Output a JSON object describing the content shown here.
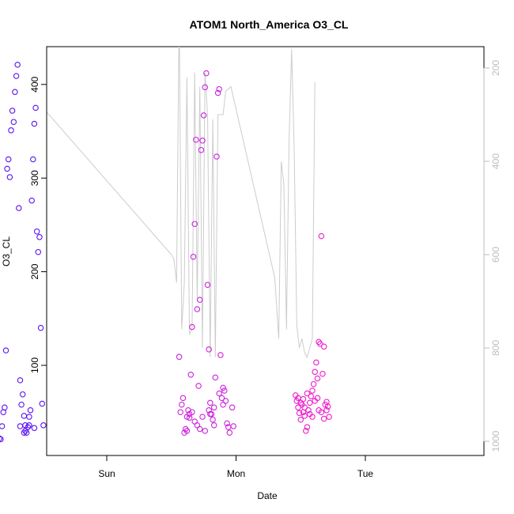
{
  "chart_data": {
    "type": "scatter",
    "title": "ATOM1 North_America O3_CL",
    "xlabel": "Date",
    "ylabel": "O3_CL",
    "x_ticks": [
      "Sun",
      "Mon",
      "Tue"
    ],
    "y_ticks": [
      100,
      200,
      300,
      400
    ],
    "y_right_ticks": [
      200,
      400,
      600,
      800,
      1000
    ],
    "y_right_reversed": true,
    "grid": false,
    "legend": "none",
    "colors": {
      "line": "#cccccc",
      "axis": "#000000",
      "right_axis": "#bdbdbd"
    },
    "points": [
      [
        0.17,
        22,
        "#5a12f2"
      ],
      [
        0.18,
        21,
        "#5a12f2"
      ],
      [
        0.19,
        35,
        "#5a12f2"
      ],
      [
        0.2,
        50,
        "#5a12f2"
      ],
      [
        0.21,
        55,
        "#5a12f2"
      ],
      [
        0.22,
        116,
        "#5a12f2"
      ],
      [
        0.23,
        310,
        "#5a12f2"
      ],
      [
        0.24,
        320,
        "#5a12f2"
      ],
      [
        0.25,
        301,
        "#5a12f2"
      ],
      [
        0.26,
        351,
        "#5a12f2"
      ],
      [
        0.27,
        372,
        "#5a12f2"
      ],
      [
        0.28,
        360,
        "#5a12f2"
      ],
      [
        0.29,
        392,
        "#5a12f2"
      ],
      [
        0.3,
        409,
        "#5a12f2"
      ],
      [
        0.31,
        421,
        "#5a12f2"
      ],
      [
        0.32,
        268,
        "#5a12f2"
      ],
      [
        0.33,
        84,
        "#5a12f2"
      ],
      [
        0.34,
        58,
        "#5a12f2"
      ],
      [
        0.35,
        69,
        "#5a12f2"
      ],
      [
        0.36,
        46,
        "#5a12f2"
      ],
      [
        0.37,
        36,
        "#5a12f2"
      ],
      [
        0.38,
        28,
        "#5a12f2"
      ],
      [
        0.39,
        34,
        "#5a12f2"
      ],
      [
        0.4,
        45,
        "#5a12f2"
      ],
      [
        0.41,
        52,
        "#5a12f2"
      ],
      [
        0.42,
        276,
        "#5a12f2"
      ],
      [
        0.43,
        320,
        "#5a12f2"
      ],
      [
        0.44,
        358,
        "#5a12f2"
      ],
      [
        0.45,
        375,
        "#5a12f2"
      ],
      [
        0.46,
        243,
        "#5a12f2"
      ],
      [
        0.47,
        221,
        "#5a12f2"
      ],
      [
        0.48,
        237,
        "#5a12f2"
      ],
      [
        0.49,
        140,
        "#5a12f2"
      ],
      [
        0.5,
        59,
        "#5a12f2"
      ],
      [
        0.51,
        36,
        "#5a12f2"
      ],
      [
        0.37,
        30,
        "#5a12f2"
      ],
      [
        0.4,
        36,
        "#5a12f2"
      ],
      [
        0.33,
        35,
        "#5a12f2"
      ],
      [
        0.36,
        28,
        "#5a12f2"
      ],
      [
        0.44,
        33,
        "#5a12f2"
      ],
      [
        1.56,
        109,
        "#cc22dd"
      ],
      [
        1.57,
        50,
        "#cc22dd"
      ],
      [
        1.58,
        58,
        "#cc22dd"
      ],
      [
        1.59,
        65,
        "#cc22dd"
      ],
      [
        1.6,
        28,
        "#cc22dd"
      ],
      [
        1.61,
        32,
        "#cc22dd"
      ],
      [
        1.62,
        45,
        "#cc22dd"
      ],
      [
        1.63,
        52,
        "#cc22dd"
      ],
      [
        1.64,
        48,
        "#cc22dd"
      ],
      [
        1.65,
        90,
        "#cc22dd"
      ],
      [
        1.66,
        141,
        "#cc22dd"
      ],
      [
        1.67,
        216,
        "#cc22dd"
      ],
      [
        1.68,
        251,
        "#cc22dd"
      ],
      [
        1.69,
        341,
        "#cc22dd"
      ],
      [
        1.7,
        160,
        "#cc22dd"
      ],
      [
        1.71,
        78,
        "#cc22dd"
      ],
      [
        1.72,
        170,
        "#cc22dd"
      ],
      [
        1.73,
        330,
        "#cc22dd"
      ],
      [
        1.74,
        340,
        "#cc22dd"
      ],
      [
        1.75,
        367,
        "#cc22dd"
      ],
      [
        1.76,
        397,
        "#cc22dd"
      ],
      [
        1.77,
        412,
        "#cc22dd"
      ],
      [
        1.78,
        186,
        "#cc22dd"
      ],
      [
        1.79,
        117,
        "#cc22dd"
      ],
      [
        1.8,
        60,
        "#cc22dd"
      ],
      [
        1.81,
        48,
        "#cc22dd"
      ],
      [
        1.82,
        42,
        "#cc22dd"
      ],
      [
        1.83,
        55,
        "#cc22dd"
      ],
      [
        1.84,
        87,
        "#cc22dd"
      ],
      [
        1.85,
        323,
        "#cc22dd"
      ],
      [
        1.86,
        391,
        "#cc22dd"
      ],
      [
        1.87,
        395,
        "#cc22dd"
      ],
      [
        1.88,
        111,
        "#cc22dd"
      ],
      [
        1.89,
        65,
        "#cc22dd"
      ],
      [
        1.9,
        76,
        "#cc22dd"
      ],
      [
        1.91,
        73,
        "#cc22dd"
      ],
      [
        1.92,
        62,
        "#cc22dd"
      ],
      [
        1.93,
        38,
        "#cc22dd"
      ],
      [
        1.94,
        34,
        "#cc22dd"
      ],
      [
        1.95,
        28,
        "#cc22dd"
      ],
      [
        1.97,
        55,
        "#cc22dd"
      ],
      [
        1.98,
        35,
        "#cc22dd"
      ],
      [
        1.62,
        30,
        "#cc22dd"
      ],
      [
        1.68,
        40,
        "#cc22dd"
      ],
      [
        1.74,
        45,
        "#cc22dd"
      ],
      [
        1.79,
        52,
        "#cc22dd"
      ],
      [
        1.83,
        36,
        "#cc22dd"
      ],
      [
        1.87,
        70,
        "#cc22dd"
      ],
      [
        1.9,
        58,
        "#cc22dd"
      ],
      [
        1.64,
        44,
        "#cc22dd"
      ],
      [
        1.7,
        36,
        "#cc22dd"
      ],
      [
        1.76,
        30,
        "#cc22dd"
      ],
      [
        1.8,
        48,
        "#cc22dd"
      ],
      [
        1.66,
        50,
        "#cc22dd"
      ],
      [
        1.72,
        32,
        "#cc22dd"
      ],
      [
        2.46,
        68,
        "#ee1ccc"
      ],
      [
        2.47,
        62,
        "#ee1ccc"
      ],
      [
        2.48,
        55,
        "#ee1ccc"
      ],
      [
        2.49,
        49,
        "#ee1ccc"
      ],
      [
        2.5,
        42,
        "#ee1ccc"
      ],
      [
        2.51,
        58,
        "#ee1ccc"
      ],
      [
        2.52,
        64,
        "#ee1ccc"
      ],
      [
        2.53,
        46,
        "#ee1ccc"
      ],
      [
        2.54,
        30,
        "#ee1ccc"
      ],
      [
        2.55,
        34,
        "#ee1ccc"
      ],
      [
        2.56,
        52,
        "#ee1ccc"
      ],
      [
        2.57,
        60,
        "#ee1ccc"
      ],
      [
        2.58,
        67,
        "#ee1ccc"
      ],
      [
        2.59,
        73,
        "#ee1ccc"
      ],
      [
        2.6,
        80,
        "#ee1ccc"
      ],
      [
        2.61,
        93,
        "#ee1ccc"
      ],
      [
        2.62,
        103,
        "#ee1ccc"
      ],
      [
        2.63,
        86,
        "#ee1ccc"
      ],
      [
        2.64,
        125,
        "#ee1ccc"
      ],
      [
        2.65,
        123,
        "#ee1ccc"
      ],
      [
        2.66,
        238,
        "#ee1ccc"
      ],
      [
        2.67,
        91,
        "#ee1ccc"
      ],
      [
        2.68,
        120,
        "#ee1ccc"
      ],
      [
        2.69,
        58,
        "#ee1ccc"
      ],
      [
        2.7,
        52,
        "#ee1ccc"
      ],
      [
        2.71,
        56,
        "#ee1ccc"
      ],
      [
        2.72,
        45,
        "#ee1ccc"
      ],
      [
        2.5,
        60,
        "#ee1ccc"
      ],
      [
        2.53,
        55,
        "#ee1ccc"
      ],
      [
        2.57,
        48,
        "#ee1ccc"
      ],
      [
        2.61,
        62,
        "#ee1ccc"
      ],
      [
        2.64,
        52,
        "#ee1ccc"
      ],
      [
        2.68,
        43,
        "#ee1ccc"
      ],
      [
        2.55,
        70,
        "#ee1ccc"
      ],
      [
        2.59,
        45,
        "#ee1ccc"
      ],
      [
        2.63,
        65,
        "#ee1ccc"
      ],
      [
        2.66,
        50,
        "#ee1ccc"
      ],
      [
        2.7,
        61,
        "#ee1ccc"
      ],
      [
        2.48,
        65,
        "#ee1ccc"
      ],
      [
        2.52,
        50,
        "#ee1ccc"
      ]
    ],
    "line_right_axis": [
      [
        0.17,
        80
      ],
      [
        0.19,
        110
      ],
      [
        0.21,
        780
      ],
      [
        0.23,
        820
      ],
      [
        0.25,
        110
      ],
      [
        0.27,
        830
      ],
      [
        0.29,
        810
      ],
      [
        0.31,
        160
      ],
      [
        0.33,
        120
      ],
      [
        0.35,
        790
      ],
      [
        0.37,
        805
      ],
      [
        0.39,
        330
      ],
      [
        0.41,
        250
      ],
      [
        0.43,
        300
      ],
      [
        0.45,
        270
      ],
      [
        0.47,
        270
      ],
      [
        0.49,
        280
      ],
      [
        1.5,
        600
      ],
      [
        1.52,
        610
      ],
      [
        1.54,
        660
      ],
      [
        1.56,
        70
      ],
      [
        1.58,
        760
      ],
      [
        1.6,
        660
      ],
      [
        1.62,
        220
      ],
      [
        1.64,
        770
      ],
      [
        1.66,
        760
      ],
      [
        1.68,
        210
      ],
      [
        1.7,
        700
      ],
      [
        1.72,
        240
      ],
      [
        1.74,
        800
      ],
      [
        1.76,
        210
      ],
      [
        1.78,
        300
      ],
      [
        1.8,
        820
      ],
      [
        1.82,
        310
      ],
      [
        1.84,
        820
      ],
      [
        1.86,
        300
      ],
      [
        1.88,
        300
      ],
      [
        1.9,
        300
      ],
      [
        1.92,
        250
      ],
      [
        1.96,
        240
      ],
      [
        2.3,
        650
      ],
      [
        2.33,
        780
      ],
      [
        2.35,
        400
      ],
      [
        2.37,
        450
      ],
      [
        2.39,
        760
      ],
      [
        2.41,
        360
      ],
      [
        2.43,
        160
      ],
      [
        2.45,
        380
      ],
      [
        2.47,
        750
      ],
      [
        2.49,
        800
      ],
      [
        2.51,
        780
      ],
      [
        2.53,
        810
      ],
      [
        2.55,
        820
      ],
      [
        2.57,
        800
      ],
      [
        2.59,
        780
      ],
      [
        2.61,
        230
      ]
    ]
  }
}
